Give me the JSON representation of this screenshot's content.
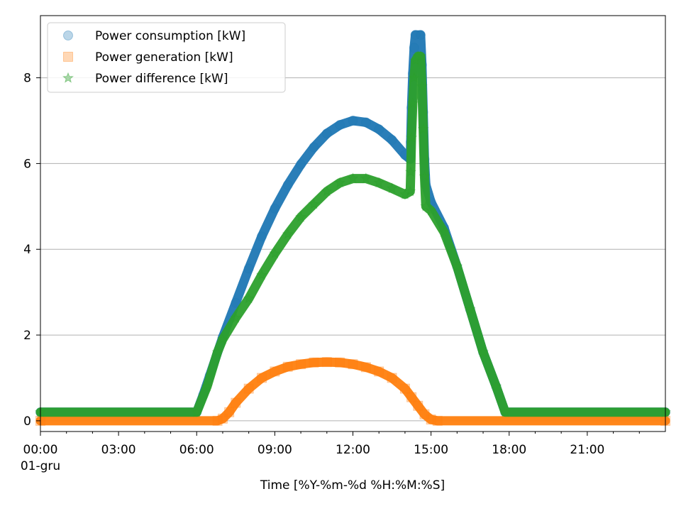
{
  "chart_data": {
    "type": "scatter",
    "title": "",
    "xlabel": "Time [%Y-%m-%d %H:%M:%S]",
    "ylabel": "",
    "xlim": [
      0,
      24
    ],
    "ylim": [
      -0.25,
      9.45
    ],
    "x_unit": "hours",
    "grid": "y-major",
    "legend_position": "top-left",
    "x_ticks": [
      {
        "value": 0,
        "label": "00:00",
        "sublabel": "01-gru"
      },
      {
        "value": 3,
        "label": "03:00"
      },
      {
        "value": 6,
        "label": "06:00"
      },
      {
        "value": 9,
        "label": "09:00"
      },
      {
        "value": 12,
        "label": "12:00"
      },
      {
        "value": 15,
        "label": "15:00"
      },
      {
        "value": 18,
        "label": "18:00"
      },
      {
        "value": 21,
        "label": "21:00"
      }
    ],
    "y_ticks": [
      {
        "value": 0,
        "label": "0"
      },
      {
        "value": 2,
        "label": "2"
      },
      {
        "value": 4,
        "label": "4"
      },
      {
        "value": 6,
        "label": "6"
      },
      {
        "value": 8,
        "label": "8"
      }
    ],
    "series": [
      {
        "name": "Power consumption [kW]",
        "color": "#1f77b4",
        "marker": "circle",
        "points": [
          [
            0,
            0.2
          ],
          [
            6,
            0.2
          ],
          [
            6.25,
            0.6
          ],
          [
            6.5,
            1.05
          ],
          [
            7,
            1.95
          ],
          [
            7.5,
            2.75
          ],
          [
            8,
            3.55
          ],
          [
            8.5,
            4.3
          ],
          [
            9,
            4.95
          ],
          [
            9.5,
            5.5
          ],
          [
            10,
            5.98
          ],
          [
            10.5,
            6.38
          ],
          [
            11,
            6.7
          ],
          [
            11.5,
            6.9
          ],
          [
            12,
            7.0
          ],
          [
            12.5,
            6.96
          ],
          [
            13,
            6.8
          ],
          [
            13.5,
            6.55
          ],
          [
            14,
            6.2
          ],
          [
            14.2,
            6.1
          ],
          [
            14.22,
            6.5
          ],
          [
            14.25,
            7.3
          ],
          [
            14.3,
            8.1
          ],
          [
            14.35,
            8.7
          ],
          [
            14.4,
            9.0
          ],
          [
            14.6,
            9.0
          ],
          [
            14.65,
            8.3
          ],
          [
            14.7,
            7.2
          ],
          [
            14.75,
            6.1
          ],
          [
            14.8,
            5.5
          ],
          [
            15,
            5.1
          ],
          [
            15.5,
            4.5
          ],
          [
            16,
            3.6
          ],
          [
            16.5,
            2.6
          ],
          [
            17,
            1.6
          ],
          [
            17.5,
            0.8
          ],
          [
            17.85,
            0.2
          ],
          [
            24,
            0.2
          ]
        ]
      },
      {
        "name": "Power generation [kW]",
        "color": "#ff7f0e",
        "marker": "square",
        "points": [
          [
            0,
            0.0
          ],
          [
            6.8,
            0.0
          ],
          [
            7,
            0.05
          ],
          [
            7.25,
            0.2
          ],
          [
            7.5,
            0.42
          ],
          [
            8,
            0.75
          ],
          [
            8.5,
            1.0
          ],
          [
            9,
            1.15
          ],
          [
            9.5,
            1.26
          ],
          [
            10,
            1.32
          ],
          [
            10.5,
            1.36
          ],
          [
            11,
            1.37
          ],
          [
            11.5,
            1.36
          ],
          [
            12,
            1.32
          ],
          [
            12.5,
            1.25
          ],
          [
            13,
            1.15
          ],
          [
            13.5,
            1.0
          ],
          [
            14,
            0.75
          ],
          [
            14.25,
            0.55
          ],
          [
            14.5,
            0.35
          ],
          [
            14.75,
            0.15
          ],
          [
            15,
            0.03
          ],
          [
            15.25,
            0.0
          ],
          [
            24,
            0.0
          ]
        ]
      },
      {
        "name": "Power difference [kW]",
        "color": "#2ca02c",
        "marker": "star",
        "points": [
          [
            0,
            0.2
          ],
          [
            6,
            0.2
          ],
          [
            6.4,
            0.8
          ],
          [
            6.8,
            1.6
          ],
          [
            7,
            1.9
          ],
          [
            7.5,
            2.4
          ],
          [
            8,
            2.85
          ],
          [
            8.5,
            3.4
          ],
          [
            9,
            3.9
          ],
          [
            9.5,
            4.35
          ],
          [
            10,
            4.75
          ],
          [
            10.5,
            5.05
          ],
          [
            11,
            5.35
          ],
          [
            11.5,
            5.55
          ],
          [
            12,
            5.65
          ],
          [
            12.5,
            5.65
          ],
          [
            13,
            5.55
          ],
          [
            13.5,
            5.42
          ],
          [
            14,
            5.28
          ],
          [
            14.2,
            5.35
          ],
          [
            14.22,
            5.8
          ],
          [
            14.25,
            6.6
          ],
          [
            14.3,
            7.4
          ],
          [
            14.35,
            8.0
          ],
          [
            14.4,
            8.4
          ],
          [
            14.5,
            8.5
          ],
          [
            14.6,
            8.5
          ],
          [
            14.65,
            7.8
          ],
          [
            14.7,
            6.8
          ],
          [
            14.75,
            5.7
          ],
          [
            14.8,
            5.0
          ],
          [
            15,
            4.9
          ],
          [
            15.5,
            4.4
          ],
          [
            16,
            3.6
          ],
          [
            16.5,
            2.6
          ],
          [
            17,
            1.6
          ],
          [
            17.5,
            0.8
          ],
          [
            17.85,
            0.2
          ],
          [
            24,
            0.2
          ]
        ]
      }
    ]
  }
}
